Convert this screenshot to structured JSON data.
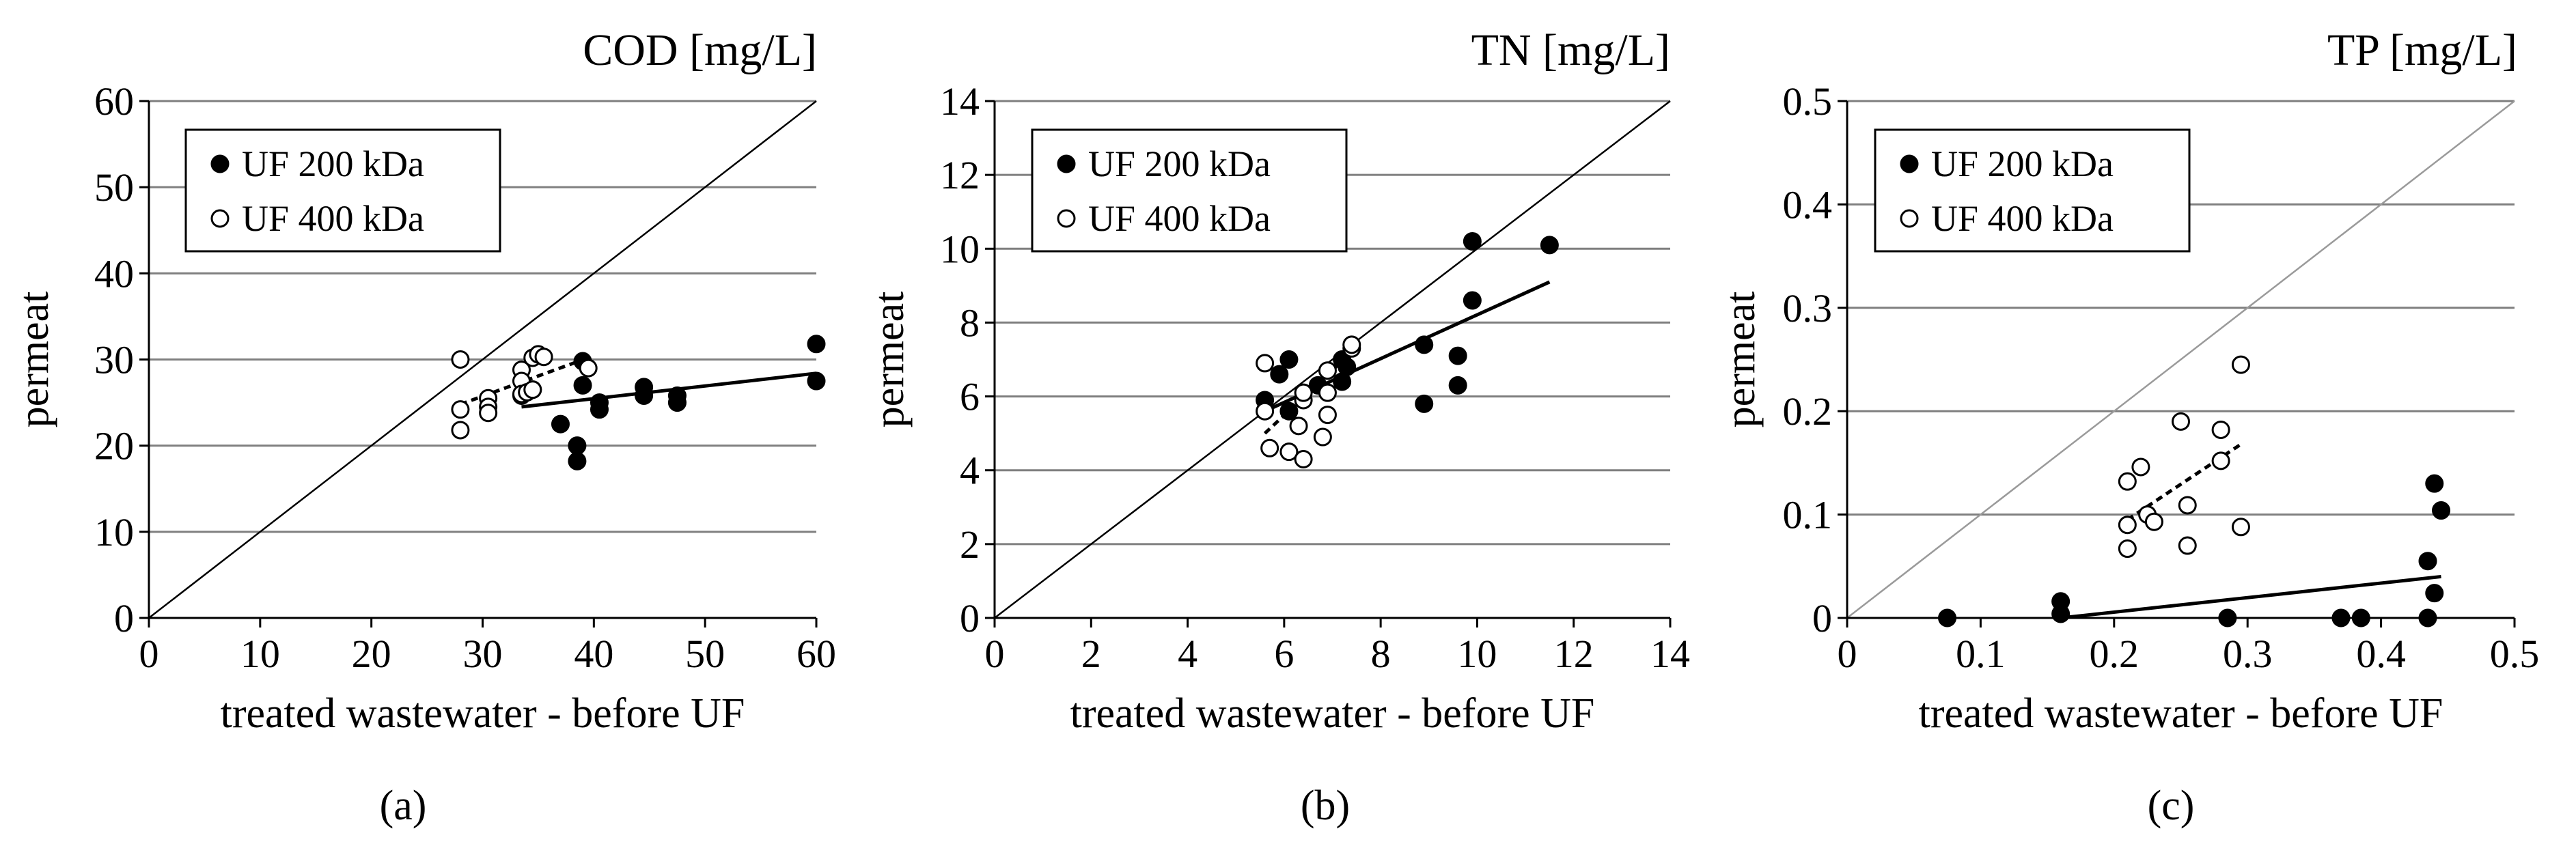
{
  "figure": {
    "panels": [
      "(a)",
      "(b)",
      "(c)"
    ]
  },
  "colors": {
    "filled_marker": "#000000",
    "open_marker_fill": "#ffffff",
    "gridline": "#7f7f7f",
    "line": "#000000"
  },
  "chart_data": [
    {
      "type": "scatter",
      "panel_label": "(a)",
      "title": "COD [mg/L]",
      "xlabel": "treated wastewater - before UF",
      "ylabel": "permeat",
      "xlim": [
        0,
        60
      ],
      "ylim": [
        0,
        60
      ],
      "xticks": [
        0,
        10,
        20,
        30,
        40,
        50,
        60
      ],
      "yticks": [
        0,
        10,
        20,
        30,
        40,
        50,
        60
      ],
      "xtick_labels": [
        "0",
        "10",
        "20",
        "30",
        "40",
        "50",
        "60"
      ],
      "ytick_labels": [
        "0",
        "10",
        "20",
        "30",
        "40",
        "50",
        "60"
      ],
      "grid": "horizontal",
      "identity_line": true,
      "legend_position": "top-left",
      "series": [
        {
          "name": "UF 200 kDa",
          "marker": "filled-circle",
          "points": [
            [
              33.5,
              25.8
            ],
            [
              34.5,
              26.5
            ],
            [
              37,
              22.5
            ],
            [
              38.5,
              20
            ],
            [
              38.5,
              18.2
            ],
            [
              39,
              27
            ],
            [
              39,
              29.8
            ],
            [
              40.5,
              24.2
            ],
            [
              40.5,
              25
            ],
            [
              44.5,
              26.8
            ],
            [
              44.5,
              25.8
            ],
            [
              47.5,
              25.8
            ],
            [
              47.5,
              25
            ],
            [
              60,
              31.8
            ],
            [
              60,
              27.5
            ]
          ],
          "trendline": {
            "style": "solid",
            "from": [
              33.5,
              24.5
            ],
            "to": [
              60,
              28.4
            ]
          }
        },
        {
          "name": "UF 400 kDa",
          "marker": "open-circle",
          "points": [
            [
              28,
              30
            ],
            [
              28,
              24.2
            ],
            [
              28,
              21.8
            ],
            [
              30.5,
              25.5
            ],
            [
              30.5,
              24.5
            ],
            [
              30.5,
              23.8
            ],
            [
              33.5,
              28.8
            ],
            [
              33.5,
              27.5
            ],
            [
              33.5,
              26
            ],
            [
              34,
              26.2
            ],
            [
              34.5,
              26.5
            ],
            [
              34.5,
              30.2
            ],
            [
              35,
              30.6
            ],
            [
              35.5,
              30.3
            ],
            [
              39.5,
              29
            ]
          ],
          "trendline": {
            "style": "dashed",
            "from": [
              28,
              24.8
            ],
            "to": [
              39.5,
              30.2
            ]
          }
        }
      ]
    },
    {
      "type": "scatter",
      "panel_label": "(b)",
      "title": "TN [mg/L]",
      "xlabel": "treated wastewater - before UF",
      "ylabel": "permeat",
      "xlim": [
        0,
        14
      ],
      "ylim": [
        0,
        14
      ],
      "xticks": [
        0,
        2,
        4,
        6,
        8,
        10,
        12,
        14
      ],
      "yticks": [
        0,
        2,
        4,
        6,
        8,
        10,
        12,
        14
      ],
      "xtick_labels": [
        "0",
        "2",
        "4",
        "6",
        "8",
        "10",
        "12",
        "14"
      ],
      "ytick_labels": [
        "0",
        "2",
        "4",
        "6",
        "8",
        "10",
        "12",
        "14"
      ],
      "grid": "horizontal",
      "identity_line": true,
      "legend_position": "top-left",
      "series": [
        {
          "name": "UF 200 kDa",
          "marker": "filled-circle",
          "points": [
            [
              5.6,
              5.9
            ],
            [
              5.9,
              6.6
            ],
            [
              6.1,
              7
            ],
            [
              6.1,
              5.6
            ],
            [
              6.7,
              6.3
            ],
            [
              7.2,
              7
            ],
            [
              7.2,
              6.4
            ],
            [
              7.3,
              6.8
            ],
            [
              8.9,
              5.8
            ],
            [
              8.9,
              7.4
            ],
            [
              9.6,
              7.1
            ],
            [
              9.6,
              6.3
            ],
            [
              9.9,
              10.2
            ],
            [
              9.9,
              8.6
            ],
            [
              11.5,
              10.1
            ]
          ],
          "trendline": {
            "style": "solid",
            "from": [
              5.6,
              5.6
            ],
            "to": [
              11.5,
              9.1
            ]
          }
        },
        {
          "name": "UF 400 kDa",
          "marker": "open-circle",
          "points": [
            [
              5.6,
              6.9
            ],
            [
              5.6,
              5.6
            ],
            [
              5.7,
              4.6
            ],
            [
              6.1,
              4.5
            ],
            [
              6.3,
              5.2
            ],
            [
              6.4,
              4.3
            ],
            [
              6.4,
              5.9
            ],
            [
              6.4,
              6.1
            ],
            [
              6.8,
              4.9
            ],
            [
              6.9,
              5.5
            ],
            [
              6.9,
              6.7
            ],
            [
              6.9,
              6.1
            ],
            [
              7.4,
              7.3
            ],
            [
              7.4,
              7.4
            ]
          ],
          "trendline": {
            "style": "dashed",
            "from": [
              5.6,
              5.0
            ],
            "to": [
              7.4,
              7.2
            ]
          }
        }
      ]
    },
    {
      "type": "scatter",
      "panel_label": "(c)",
      "title": "TP [mg/L]",
      "xlabel": "treated wastewater - before UF",
      "ylabel": "permeat",
      "xlim": [
        0,
        0.5
      ],
      "ylim": [
        0,
        0.5
      ],
      "xticks": [
        0,
        0.1,
        0.2,
        0.3,
        0.4,
        0.5
      ],
      "yticks": [
        0,
        0.1,
        0.2,
        0.3,
        0.4,
        0.5
      ],
      "xtick_labels": [
        "0",
        "0.1",
        "0.2",
        "0.3",
        "0.4",
        "0.5"
      ],
      "ytick_labels": [
        "0",
        "0.1",
        "0.2",
        "0.3",
        "0.4",
        "0.5"
      ],
      "grid": "horizontal",
      "identity_line": true,
      "legend_position": "top-left",
      "series": [
        {
          "name": "UF 200 kDa",
          "marker": "filled-circle",
          "points": [
            [
              0.075,
              0
            ],
            [
              0.16,
              0.016
            ],
            [
              0.16,
              0.004
            ],
            [
              0.285,
              0
            ],
            [
              0.37,
              0
            ],
            [
              0.385,
              0
            ],
            [
              0.435,
              0.055
            ],
            [
              0.435,
              0
            ],
            [
              0.44,
              0.13
            ],
            [
              0.44,
              0.024
            ],
            [
              0.445,
              0.104
            ]
          ],
          "trendline": {
            "style": "solid",
            "from": [
              0.16,
              0.0
            ],
            "to": [
              0.445,
              0.04
            ]
          }
        },
        {
          "name": "UF 400 kDa",
          "marker": "open-circle",
          "points": [
            [
              0.21,
              0.132
            ],
            [
              0.21,
              0.09
            ],
            [
              0.21,
              0.067
            ],
            [
              0.22,
              0.146
            ],
            [
              0.225,
              0.1
            ],
            [
              0.23,
              0.093
            ],
            [
              0.25,
              0.19
            ],
            [
              0.255,
              0.109
            ],
            [
              0.255,
              0.07
            ],
            [
              0.28,
              0.182
            ],
            [
              0.28,
              0.152
            ],
            [
              0.295,
              0.245
            ],
            [
              0.295,
              0.088
            ]
          ],
          "trendline": {
            "style": "dashed",
            "from": [
              0.21,
              0.095
            ],
            "to": [
              0.295,
              0.168
            ]
          }
        }
      ]
    }
  ]
}
